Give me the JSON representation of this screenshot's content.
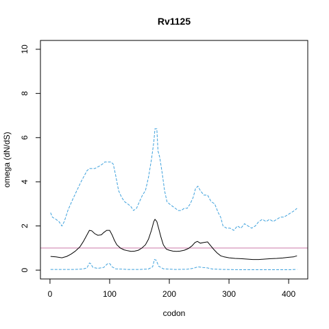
{
  "chart_data": {
    "type": "line",
    "title": "Rv1125",
    "xlabel": "codon",
    "ylabel": "omega (dN/dS)",
    "xlim": [
      -16,
      432
    ],
    "ylim": [
      -0.4,
      10.4
    ],
    "xticks": [
      "0",
      "100",
      "200",
      "300",
      "400"
    ],
    "yticks": [
      "0",
      "2",
      "4",
      "6",
      "8",
      "10"
    ],
    "grid": false,
    "legend": "none",
    "reference_line": {
      "y": 1,
      "color": "#cc79a7"
    },
    "series": [
      {
        "role": "upper",
        "color": "#3ca0dc",
        "dash": "dashed",
        "points": [
          [
            1,
            2.6
          ],
          [
            4,
            2.4
          ],
          [
            10,
            2.3
          ],
          [
            15,
            2.2
          ],
          [
            20,
            2.0
          ],
          [
            24,
            2.2
          ],
          [
            30,
            2.7
          ],
          [
            38,
            3.2
          ],
          [
            45,
            3.6
          ],
          [
            52,
            4.0
          ],
          [
            58,
            4.3
          ],
          [
            62,
            4.5
          ],
          [
            66,
            4.6
          ],
          [
            75,
            4.6
          ],
          [
            82,
            4.7
          ],
          [
            88,
            4.8
          ],
          [
            92,
            4.9
          ],
          [
            97,
            4.9
          ],
          [
            102,
            4.9
          ],
          [
            106,
            4.8
          ],
          [
            110,
            4.3
          ],
          [
            115,
            3.6
          ],
          [
            120,
            3.3
          ],
          [
            125,
            3.1
          ],
          [
            130,
            3.0
          ],
          [
            135,
            2.9
          ],
          [
            140,
            2.7
          ],
          [
            145,
            2.8
          ],
          [
            150,
            3.1
          ],
          [
            155,
            3.4
          ],
          [
            160,
            3.6
          ],
          [
            165,
            4.2
          ],
          [
            170,
            5.0
          ],
          [
            174,
            5.8
          ],
          [
            176,
            6.4
          ],
          [
            179,
            6.4
          ],
          [
            181,
            5.4
          ],
          [
            184,
            5.1
          ],
          [
            188,
            4.4
          ],
          [
            192,
            3.6
          ],
          [
            196,
            3.1
          ],
          [
            200,
            3.0
          ],
          [
            205,
            2.9
          ],
          [
            210,
            2.8
          ],
          [
            215,
            2.7
          ],
          [
            220,
            2.7
          ],
          [
            225,
            2.8
          ],
          [
            230,
            2.8
          ],
          [
            235,
            3.0
          ],
          [
            240,
            3.3
          ],
          [
            244,
            3.7
          ],
          [
            248,
            3.8
          ],
          [
            252,
            3.6
          ],
          [
            258,
            3.4
          ],
          [
            264,
            3.4
          ],
          [
            270,
            3.1
          ],
          [
            276,
            3.0
          ],
          [
            282,
            2.6
          ],
          [
            286,
            2.4
          ],
          [
            290,
            2.0
          ],
          [
            296,
            1.9
          ],
          [
            302,
            1.9
          ],
          [
            308,
            1.8
          ],
          [
            314,
            2.0
          ],
          [
            320,
            1.9
          ],
          [
            326,
            2.1
          ],
          [
            332,
            2.0
          ],
          [
            338,
            1.9
          ],
          [
            344,
            2.0
          ],
          [
            350,
            2.2
          ],
          [
            356,
            2.3
          ],
          [
            362,
            2.2
          ],
          [
            368,
            2.3
          ],
          [
            374,
            2.2
          ],
          [
            380,
            2.3
          ],
          [
            386,
            2.4
          ],
          [
            392,
            2.4
          ],
          [
            398,
            2.5
          ],
          [
            404,
            2.6
          ],
          [
            410,
            2.7
          ],
          [
            414,
            2.8
          ]
        ]
      },
      {
        "role": "estimate",
        "color": "#000000",
        "dash": "solid",
        "points": [
          [
            1,
            0.62
          ],
          [
            10,
            0.6
          ],
          [
            20,
            0.56
          ],
          [
            28,
            0.62
          ],
          [
            35,
            0.72
          ],
          [
            42,
            0.85
          ],
          [
            50,
            1.05
          ],
          [
            56,
            1.3
          ],
          [
            62,
            1.6
          ],
          [
            66,
            1.8
          ],
          [
            70,
            1.78
          ],
          [
            75,
            1.65
          ],
          [
            80,
            1.58
          ],
          [
            86,
            1.6
          ],
          [
            90,
            1.7
          ],
          [
            95,
            1.8
          ],
          [
            100,
            1.8
          ],
          [
            104,
            1.6
          ],
          [
            108,
            1.35
          ],
          [
            112,
            1.15
          ],
          [
            118,
            1.0
          ],
          [
            124,
            0.92
          ],
          [
            130,
            0.88
          ],
          [
            136,
            0.85
          ],
          [
            142,
            0.86
          ],
          [
            148,
            0.9
          ],
          [
            154,
            1.0
          ],
          [
            160,
            1.15
          ],
          [
            165,
            1.4
          ],
          [
            170,
            1.8
          ],
          [
            174,
            2.2
          ],
          [
            176,
            2.3
          ],
          [
            179,
            2.2
          ],
          [
            182,
            1.9
          ],
          [
            186,
            1.5
          ],
          [
            190,
            1.15
          ],
          [
            195,
            0.95
          ],
          [
            200,
            0.9
          ],
          [
            206,
            0.86
          ],
          [
            212,
            0.85
          ],
          [
            218,
            0.86
          ],
          [
            225,
            0.9
          ],
          [
            232,
            0.98
          ],
          [
            238,
            1.1
          ],
          [
            243,
            1.25
          ],
          [
            247,
            1.3
          ],
          [
            252,
            1.22
          ],
          [
            258,
            1.25
          ],
          [
            264,
            1.28
          ],
          [
            268,
            1.15
          ],
          [
            274,
            0.95
          ],
          [
            280,
            0.78
          ],
          [
            286,
            0.65
          ],
          [
            292,
            0.6
          ],
          [
            300,
            0.56
          ],
          [
            310,
            0.53
          ],
          [
            320,
            0.52
          ],
          [
            330,
            0.5
          ],
          [
            340,
            0.48
          ],
          [
            350,
            0.48
          ],
          [
            360,
            0.5
          ],
          [
            370,
            0.52
          ],
          [
            380,
            0.53
          ],
          [
            390,
            0.55
          ],
          [
            400,
            0.58
          ],
          [
            408,
            0.6
          ],
          [
            414,
            0.65
          ]
        ]
      },
      {
        "role": "lower",
        "color": "#3ca0dc",
        "dash": "dashed",
        "points": [
          [
            1,
            0.03
          ],
          [
            20,
            0.03
          ],
          [
            40,
            0.03
          ],
          [
            55,
            0.05
          ],
          [
            62,
            0.1
          ],
          [
            66,
            0.32
          ],
          [
            68,
            0.3
          ],
          [
            72,
            0.12
          ],
          [
            80,
            0.08
          ],
          [
            90,
            0.12
          ],
          [
            96,
            0.28
          ],
          [
            100,
            0.3
          ],
          [
            104,
            0.15
          ],
          [
            110,
            0.06
          ],
          [
            130,
            0.03
          ],
          [
            150,
            0.03
          ],
          [
            165,
            0.05
          ],
          [
            172,
            0.15
          ],
          [
            175,
            0.48
          ],
          [
            178,
            0.45
          ],
          [
            182,
            0.18
          ],
          [
            190,
            0.06
          ],
          [
            210,
            0.03
          ],
          [
            230,
            0.04
          ],
          [
            240,
            0.08
          ],
          [
            248,
            0.15
          ],
          [
            256,
            0.12
          ],
          [
            264,
            0.1
          ],
          [
            272,
            0.05
          ],
          [
            290,
            0.03
          ],
          [
            320,
            0.02
          ],
          [
            360,
            0.02
          ],
          [
            400,
            0.02
          ],
          [
            414,
            0.03
          ]
        ]
      }
    ]
  }
}
